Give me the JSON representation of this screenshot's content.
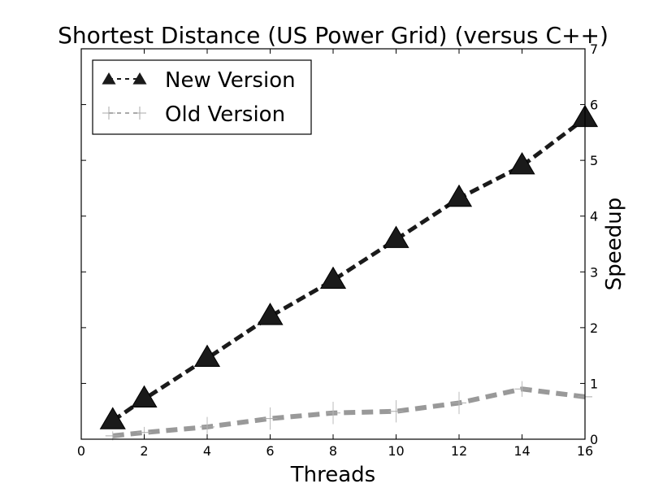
{
  "chart_data": {
    "type": "line",
    "title": "Shortest Distance (US Power Grid) (versus C++)",
    "xlabel": "Threads",
    "ylabel": "Speedup",
    "xlim": [
      0,
      16
    ],
    "ylim": [
      0,
      7
    ],
    "x_ticks": [
      0,
      2,
      4,
      6,
      8,
      10,
      12,
      14,
      16
    ],
    "y_ticks": [
      0,
      1,
      2,
      3,
      4,
      5,
      6,
      7
    ],
    "y_axis_side": "right",
    "grid": false,
    "legend_position": "top-left",
    "series": [
      {
        "name": "New Version",
        "color": "#1a1a1a",
        "marker": "triangle",
        "linestyle": "dashed",
        "x": [
          1,
          2,
          4,
          6,
          8,
          10,
          12,
          14,
          16
        ],
        "y": [
          0.33,
          0.72,
          1.45,
          2.2,
          2.85,
          3.58,
          4.32,
          4.9,
          5.75
        ]
      },
      {
        "name": "Old Version",
        "color": "#999999",
        "marker": "plus",
        "linestyle": "dashed",
        "x": [
          1,
          2,
          4,
          6,
          8,
          10,
          12,
          14,
          16
        ],
        "y": [
          0.06,
          0.12,
          0.22,
          0.37,
          0.47,
          0.5,
          0.65,
          0.9,
          0.76
        ],
        "error": [
          0.08,
          0.1,
          0.18,
          0.2,
          0.2,
          0.2,
          0.2,
          0.14,
          0.12
        ]
      }
    ]
  }
}
